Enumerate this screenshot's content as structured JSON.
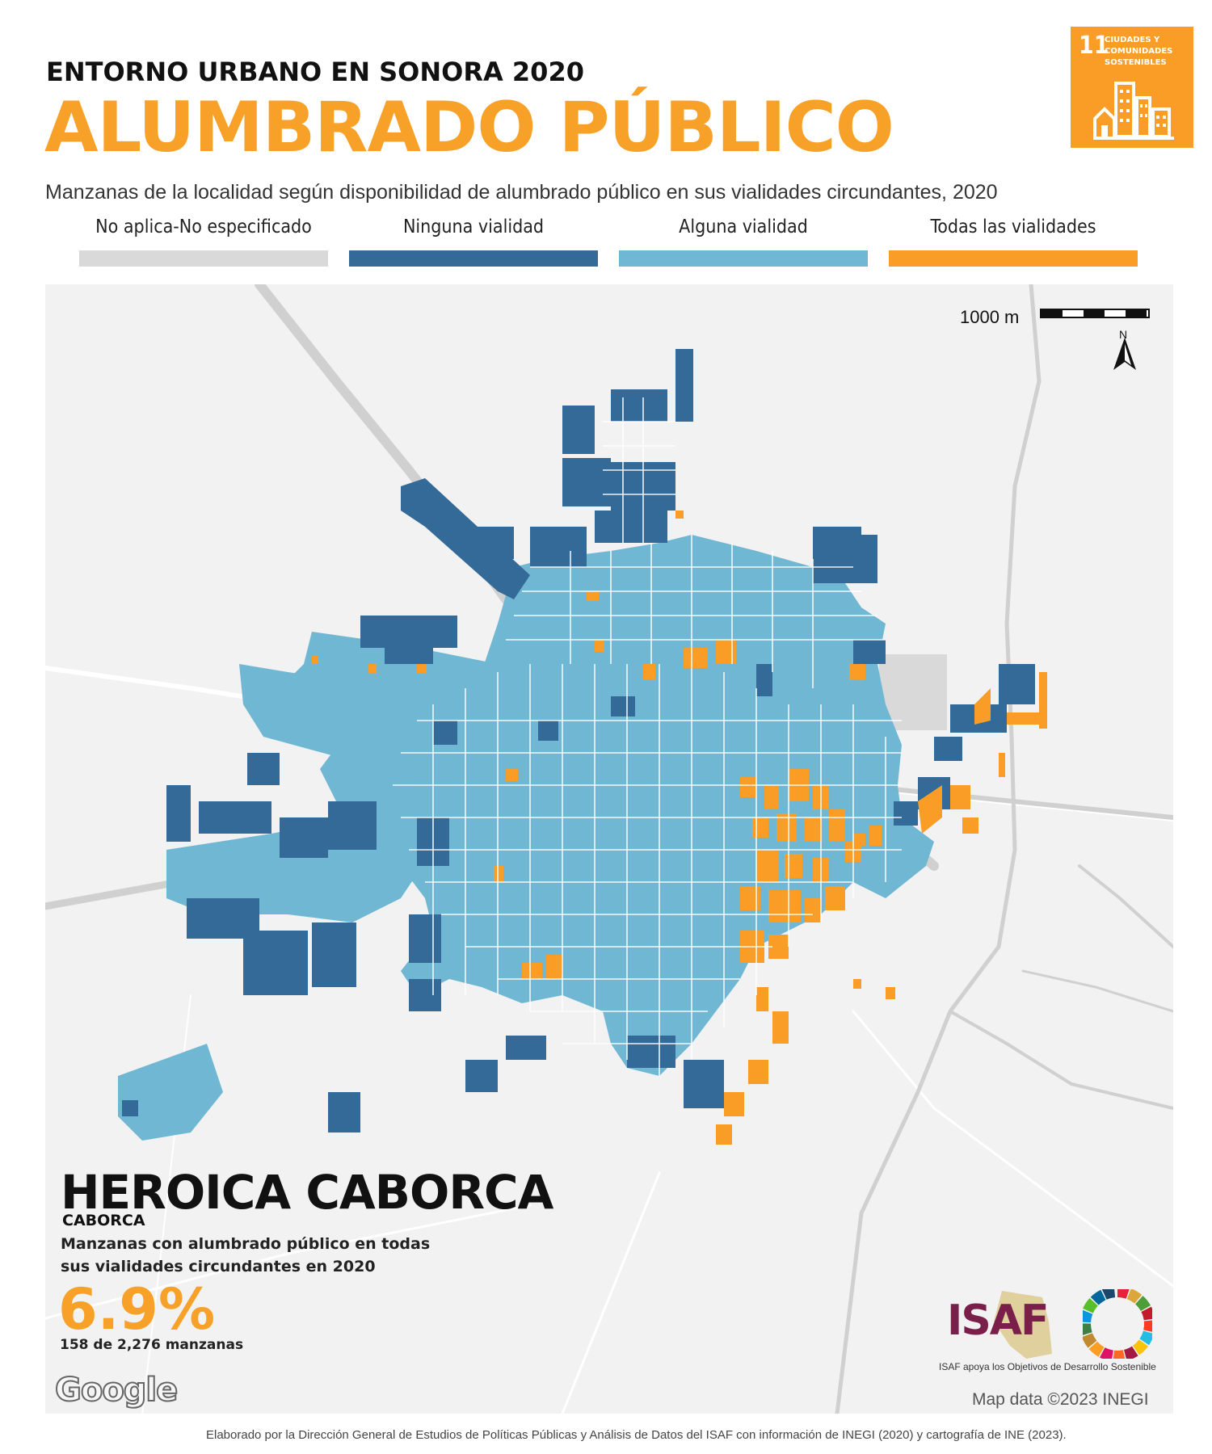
{
  "header": {
    "supertitle": "ENTORNO URBANO EN SONORA 2020",
    "title": "ALUMBRADO PÚBLICO",
    "subtitle": "Manzanas de la localidad según disponibilidad de alumbrado público en sus vialidades circundantes, 2020"
  },
  "sdg_badge": {
    "number": "11",
    "text": "CIUDADES Y COMUNIDADES SOSTENIBLES",
    "color": "#f99d26"
  },
  "legend": [
    {
      "label": "No aplica-No especificado",
      "color": "#d9d9d9"
    },
    {
      "label": "Ninguna vialidad",
      "color": "#336a97"
    },
    {
      "label": "Alguna vialidad",
      "color": "#6fb7d3"
    },
    {
      "label": "Todas las vialidades",
      "color": "#f99d26"
    }
  ],
  "map": {
    "scale_label": "1000 m",
    "north_label": "N",
    "attribution": "Map data ©2023 INEGI",
    "provider": "Google"
  },
  "place": {
    "name": "HEROICA CABORCA",
    "municipality": "CABORCA",
    "stat_description": "Manzanas con alumbrado público en todas sus vialidades circundantes en 2020",
    "percent": "6.9%",
    "count": "158 de 2,276 manzanas",
    "share_all_streets": 0.069,
    "blocks_all_streets": 158,
    "blocks_total": 2276
  },
  "logos": {
    "isaf": "ISAF",
    "isaf_caption": "ISAF apoya los Objetivos de Desarrollo Sostenible"
  },
  "footer": {
    "credit": "Elaborado por la Dirección General de Estudios de Políticas Públicas y Análisis de Datos del ISAF con información de INEGI (2020) y cartografía de INE (2023)."
  }
}
